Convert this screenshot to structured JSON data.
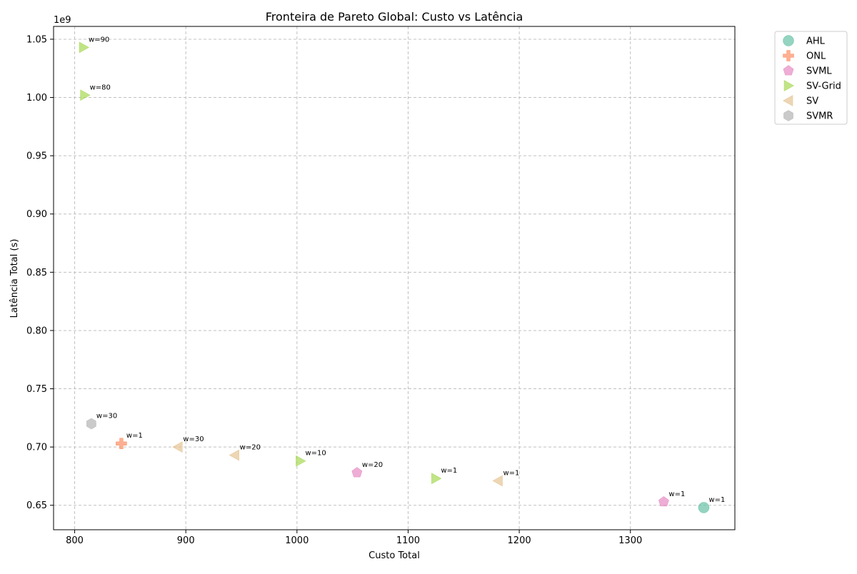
{
  "chart_data": {
    "type": "scatter",
    "title": "Fronteira de Pareto Global: Custo vs Latência",
    "xlabel": "Custo Total",
    "ylabel": "Latência Total (s)",
    "y_scale_label": "1e9",
    "xlim": [
      781,
      1394
    ],
    "ylim": [
      0.629,
      1.061
    ],
    "x_ticks": [
      800,
      900,
      1000,
      1100,
      1200,
      1300
    ],
    "y_ticks": [
      0.65,
      0.7,
      0.75,
      0.8,
      0.85,
      0.9,
      0.95,
      1.0,
      1.05
    ],
    "x_tick_labels": [
      "800",
      "900",
      "1000",
      "1100",
      "1200",
      "1300"
    ],
    "y_tick_labels": [
      "0.65",
      "0.70",
      "0.75",
      "0.80",
      "0.85",
      "0.90",
      "0.95",
      "1.00",
      "1.05"
    ],
    "grid": true,
    "legend_placement": "outside-top-right",
    "series": [
      {
        "name": "AHL",
        "marker": "circle",
        "color": "#66c2a5",
        "points": [
          {
            "x": 1366,
            "y": 0.648,
            "label": "w=1"
          }
        ]
      },
      {
        "name": "ONL",
        "marker": "plus",
        "color": "#fc8d62",
        "points": [
          {
            "x": 842,
            "y": 0.703,
            "label": "w=1"
          }
        ]
      },
      {
        "name": "SVML",
        "marker": "pentagon",
        "color": "#e78ac3",
        "points": [
          {
            "x": 1054,
            "y": 0.678,
            "label": "w=20"
          },
          {
            "x": 1330,
            "y": 0.653,
            "label": "w=1"
          }
        ]
      },
      {
        "name": "SV-Grid",
        "marker": "triangle-right",
        "color": "#a6d854",
        "points": [
          {
            "x": 808,
            "y": 1.043,
            "label": "w=90"
          },
          {
            "x": 809,
            "y": 1.002,
            "label": "w=80"
          },
          {
            "x": 1003,
            "y": 0.688,
            "label": "w=10"
          },
          {
            "x": 1125,
            "y": 0.673,
            "label": "w=1"
          }
        ]
      },
      {
        "name": "SV",
        "marker": "triangle-left",
        "color": "#e5c494",
        "points": [
          {
            "x": 893,
            "y": 0.7,
            "label": "w=30"
          },
          {
            "x": 944,
            "y": 0.693,
            "label": "w=20"
          },
          {
            "x": 1181,
            "y": 0.671,
            "label": "w=1"
          }
        ]
      },
      {
        "name": "SVMR",
        "marker": "hexagon",
        "color": "#b3b3b3",
        "points": [
          {
            "x": 815,
            "y": 0.72,
            "label": "w=30"
          }
        ]
      }
    ]
  }
}
